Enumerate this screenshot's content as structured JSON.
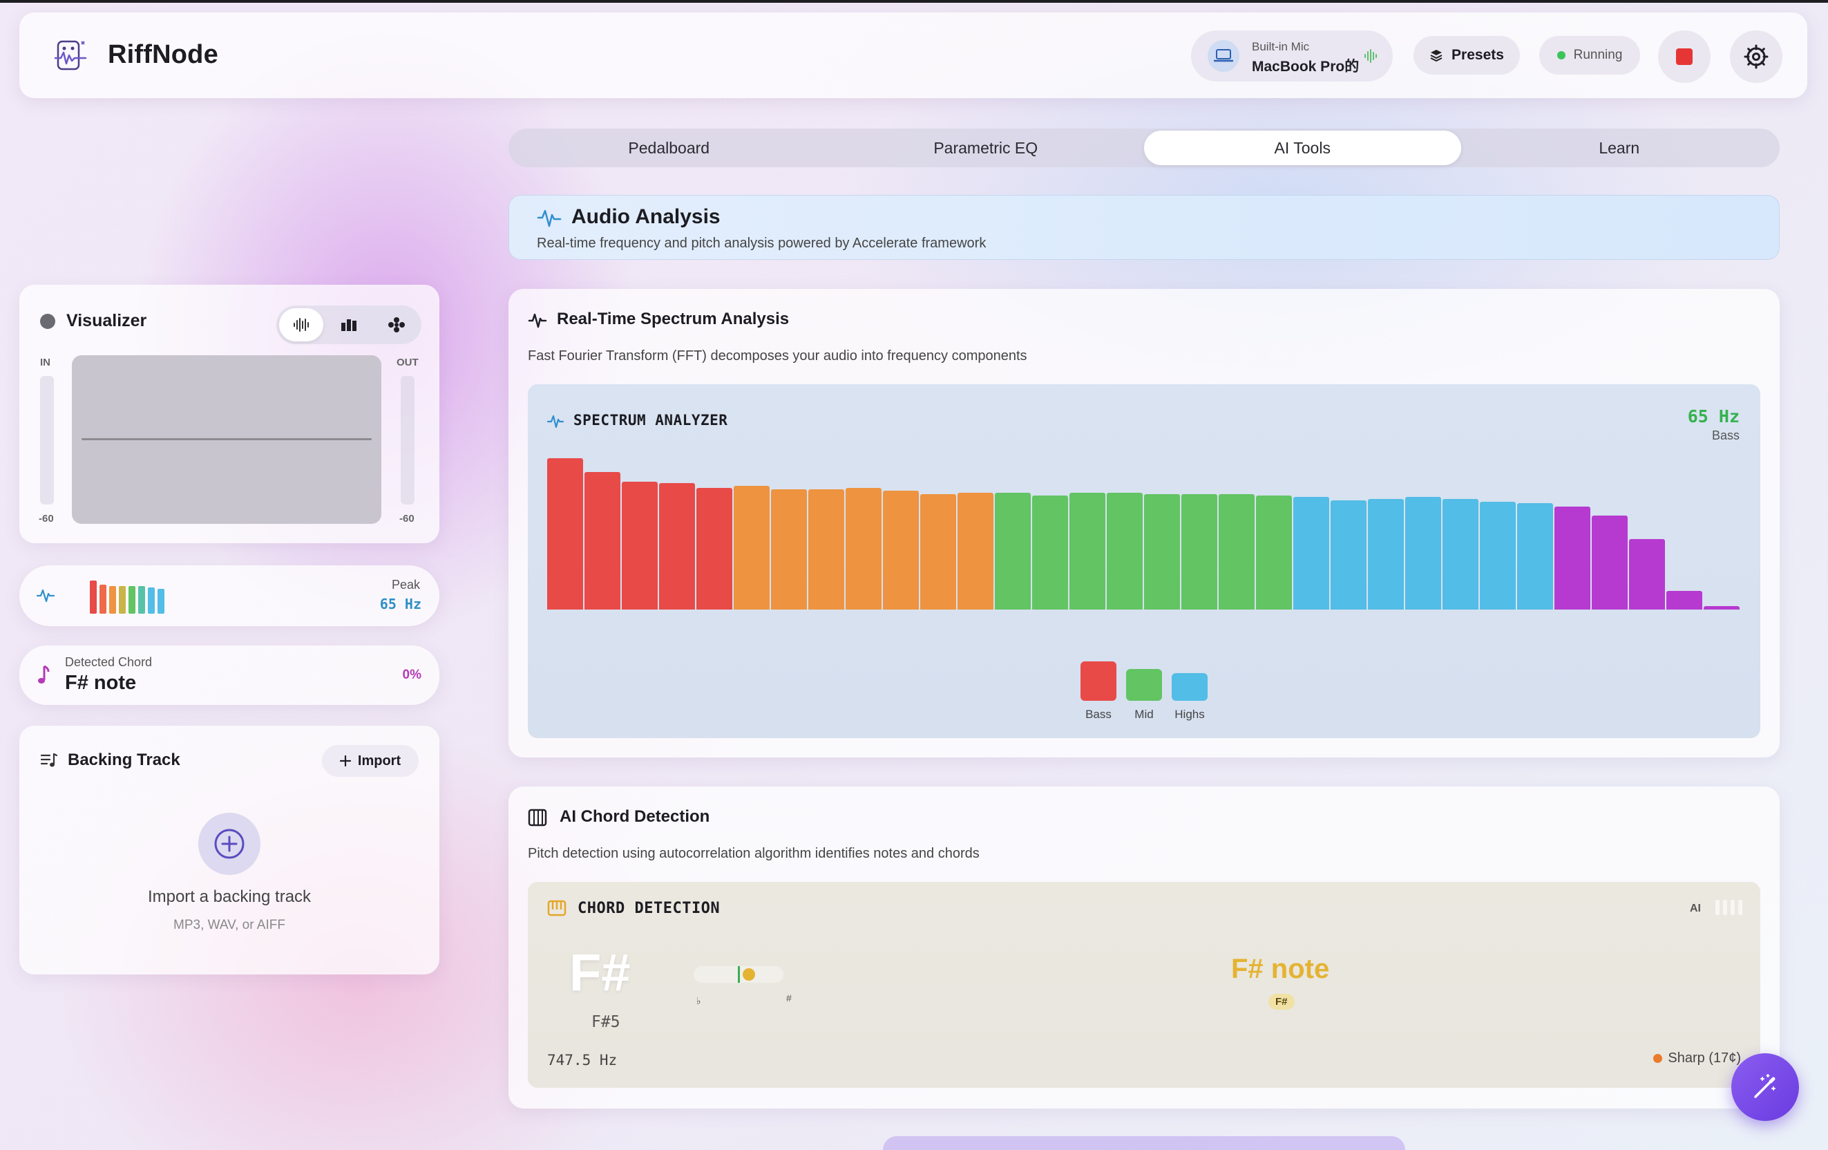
{
  "app": {
    "title": "RiffNode"
  },
  "header": {
    "mic_label": "Built-in Mic",
    "mic_name": "MacBook Pro的",
    "presets_label": "Presets",
    "status_label": "Running"
  },
  "tabs": [
    {
      "label": "Pedalboard",
      "active": false
    },
    {
      "label": "Parametric EQ",
      "active": false
    },
    {
      "label": "AI Tools",
      "active": true
    },
    {
      "label": "Learn",
      "active": false
    }
  ],
  "banner": {
    "title": "Audio Analysis",
    "subtitle": "Real-time frequency and pitch analysis powered by Accelerate framework"
  },
  "spectrum": {
    "title": "Real-Time Spectrum Analysis",
    "subtitle": "Fast Fourier Transform (FFT) decomposes your audio into frequency components",
    "panel_label": "SPECTRUM ANALYZER",
    "freq": "65 Hz",
    "band": "Bass",
    "legend": [
      {
        "label": "Bass",
        "color": "#e84a48",
        "level": 0.75
      },
      {
        "label": "Mid",
        "color": "#62c463",
        "level": 0.6
      },
      {
        "label": "Highs",
        "color": "#52bde6",
        "level": 0.52
      }
    ]
  },
  "chart_data": {
    "type": "bar",
    "values": [
      0.97,
      0.88,
      0.82,
      0.81,
      0.78,
      0.79,
      0.77,
      0.77,
      0.78,
      0.76,
      0.74,
      0.75,
      0.75,
      0.73,
      0.75,
      0.75,
      0.74,
      0.74,
      0.74,
      0.73,
      0.72,
      0.7,
      0.71,
      0.72,
      0.71,
      0.69,
      0.68,
      0.66,
      0.6,
      0.45,
      0.12,
      0.02
    ],
    "colors": [
      "#e84a48",
      "#e84a48",
      "#e84a48",
      "#e84a48",
      "#e84a48",
      "#ee9340",
      "#ee9340",
      "#ee9340",
      "#ee9340",
      "#ee9340",
      "#ee9340",
      "#ee9340",
      "#62c463",
      "#62c463",
      "#62c463",
      "#62c463",
      "#62c463",
      "#62c463",
      "#62c463",
      "#62c463",
      "#52bde6",
      "#52bde6",
      "#52bde6",
      "#52bde6",
      "#52bde6",
      "#52bde6",
      "#52bde6",
      "#b63ad0",
      "#b63ad0",
      "#b63ad0",
      "#b63ad0",
      "#b63ad0"
    ],
    "ylim": [
      0,
      1
    ]
  },
  "chord": {
    "title": "AI Chord Detection",
    "subtitle": "Pitch detection using autocorrelation algorithm identifies notes and chords",
    "panel_label": "CHORD DETECTION",
    "ai_badge": "AI",
    "note": "F#",
    "octave": "F#5",
    "flat_symbol": "♭",
    "sharp_symbol": "#",
    "chord_name": "F# note",
    "chip": "F#",
    "hz": "747.5 Hz",
    "tuning": "Sharp (17¢)"
  },
  "sidebar": {
    "visualizer": {
      "title": "Visualizer",
      "in_label": "IN",
      "out_label": "OUT",
      "in_db": "-60",
      "out_db": "-60"
    },
    "peak": {
      "label": "Peak",
      "value": "65 Hz"
    },
    "detected_chord": {
      "label": "Detected Chord",
      "value": "F# note",
      "confidence": "0%"
    },
    "backing_track": {
      "title": "Backing Track",
      "import_label": "Import",
      "empty_title": "Import a backing track",
      "empty_sub": "MP3, WAV, or AIFF"
    }
  }
}
